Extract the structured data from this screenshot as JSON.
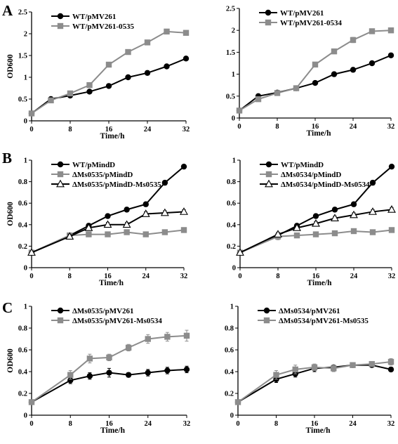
{
  "panel_labels": [
    "A",
    "B",
    "C"
  ],
  "chart_data": [
    {
      "type": "line",
      "panel": "A",
      "xlabel": "Time/h",
      "ylabel": "OD600",
      "xlim": [
        0,
        32
      ],
      "ylim": [
        0,
        2.5
      ],
      "xticks": [
        0,
        8,
        16,
        24,
        32
      ],
      "yticks": [
        0,
        0.5,
        1,
        1.5,
        2,
        2.5
      ],
      "ytick_labels": [
        "0",
        "0.5",
        "1",
        "1.5",
        "2",
        "2.5"
      ],
      "legend": "top-left",
      "series": [
        {
          "name": "WT/pMV261",
          "marker": "circle",
          "color": "#000000",
          "x": [
            0,
            4,
            8,
            12,
            16,
            20,
            24,
            28,
            32
          ],
          "y": [
            0.17,
            0.5,
            0.58,
            0.67,
            0.8,
            1.0,
            1.1,
            1.25,
            1.43
          ],
          "err": [
            0.02,
            0.03,
            0.03,
            0.03,
            0.03,
            0.04,
            0.05,
            0.04,
            0.03
          ]
        },
        {
          "name": "WT/pMV261-0535",
          "marker": "square",
          "color": "#8c8c8c",
          "x": [
            0,
            4,
            8,
            12,
            16,
            20,
            24,
            28,
            32
          ],
          "y": [
            0.17,
            0.47,
            0.63,
            0.82,
            1.29,
            1.58,
            1.8,
            2.05,
            2.02
          ],
          "err": [
            0.02,
            0.03,
            0.03,
            0.04,
            0.04,
            0.05,
            0.04,
            0.04,
            0.03
          ]
        }
      ]
    },
    {
      "type": "line",
      "panel": "A",
      "xlabel": "Time/h",
      "ylabel": "",
      "xlim": [
        0,
        32
      ],
      "ylim": [
        0,
        2.5
      ],
      "xticks": [
        0,
        8,
        16,
        24,
        32
      ],
      "yticks": [
        0,
        0.5,
        1,
        1.5,
        2,
        2.5
      ],
      "ytick_labels": [
        "0",
        "0.5",
        "1",
        "1.5",
        "2",
        "2.5"
      ],
      "legend": "top-left",
      "series": [
        {
          "name": "WT/pMV261",
          "marker": "circle",
          "color": "#000000",
          "x": [
            0,
            4,
            8,
            12,
            16,
            20,
            24,
            28,
            32
          ],
          "y": [
            0.17,
            0.5,
            0.58,
            0.68,
            0.8,
            1.0,
            1.1,
            1.25,
            1.43
          ],
          "err": [
            0.02,
            0.03,
            0.03,
            0.03,
            0.03,
            0.03,
            0.04,
            0.04,
            0.03
          ]
        },
        {
          "name": "WT/pMV261-0534",
          "marker": "square",
          "color": "#8c8c8c",
          "x": [
            0,
            4,
            8,
            12,
            16,
            20,
            24,
            28,
            32
          ],
          "y": [
            0.17,
            0.43,
            0.57,
            0.68,
            1.22,
            1.52,
            1.78,
            1.98,
            2.0
          ],
          "err": [
            0.02,
            0.03,
            0.03,
            0.03,
            0.05,
            0.05,
            0.06,
            0.04,
            0.03
          ]
        }
      ]
    },
    {
      "type": "line",
      "panel": "B",
      "xlabel": "Time/h",
      "ylabel": "OD600",
      "xlim": [
        0,
        32
      ],
      "ylim": [
        0,
        1
      ],
      "xticks": [
        0,
        8,
        16,
        24,
        32
      ],
      "yticks": [
        0,
        0.2,
        0.4,
        0.6,
        0.8,
        1
      ],
      "ytick_labels": [
        "0",
        "0.2",
        "0.4",
        "0.6",
        "0.8",
        "1"
      ],
      "legend": "top-left",
      "series": [
        {
          "name": "WT/pMindD",
          "marker": "circle",
          "color": "#000000",
          "x": [
            0,
            8,
            12,
            16,
            20,
            24,
            28,
            32
          ],
          "y": [
            0.14,
            0.3,
            0.39,
            0.48,
            0.54,
            0.59,
            0.79,
            0.94
          ],
          "err": [
            0.01,
            0.02,
            0.02,
            0.02,
            0.02,
            0.02,
            0.02,
            0.01
          ]
        },
        {
          "name": "ΔMs0535/pMindD",
          "marker": "square",
          "color": "#8c8c8c",
          "x": [
            0,
            8,
            12,
            16,
            20,
            24,
            28,
            32
          ],
          "y": [
            0.14,
            0.3,
            0.31,
            0.31,
            0.33,
            0.31,
            0.33,
            0.35
          ],
          "err": [
            0.01,
            0.02,
            0.02,
            0.02,
            0.02,
            0.01,
            0.02,
            0.02
          ]
        },
        {
          "name": "ΔMs0535/pMindD-Ms0535",
          "marker": "triangle",
          "color": "#000000",
          "x": [
            0,
            8,
            12,
            16,
            20,
            24,
            28,
            32
          ],
          "y": [
            0.14,
            0.29,
            0.37,
            0.4,
            0.4,
            0.5,
            0.51,
            0.52
          ],
          "err": [
            0.01,
            0.02,
            0.02,
            0.02,
            0.02,
            0.02,
            0.02,
            0.02
          ]
        }
      ]
    },
    {
      "type": "line",
      "panel": "B",
      "xlabel": "Time/h",
      "ylabel": "",
      "xlim": [
        0,
        32
      ],
      "ylim": [
        0,
        1
      ],
      "xticks": [
        0,
        8,
        16,
        24,
        32
      ],
      "yticks": [
        0,
        0.2,
        0.4,
        0.6,
        0.8,
        1
      ],
      "ytick_labels": [
        "0",
        "0.2",
        "0.4",
        "0.6",
        "0.8",
        "1"
      ],
      "legend": "top-left",
      "series": [
        {
          "name": "WT/pMindD",
          "marker": "circle",
          "color": "#000000",
          "x": [
            0,
            8,
            12,
            16,
            20,
            24,
            28,
            32
          ],
          "y": [
            0.14,
            0.3,
            0.39,
            0.48,
            0.54,
            0.59,
            0.79,
            0.94
          ],
          "err": [
            0.01,
            0.02,
            0.02,
            0.02,
            0.02,
            0.02,
            0.02,
            0.01
          ]
        },
        {
          "name": "ΔMs0534/pMindD",
          "marker": "square",
          "color": "#8c8c8c",
          "x": [
            0,
            8,
            12,
            16,
            20,
            24,
            28,
            32
          ],
          "y": [
            0.14,
            0.29,
            0.3,
            0.31,
            0.32,
            0.34,
            0.33,
            0.35
          ],
          "err": [
            0.01,
            0.03,
            0.02,
            0.02,
            0.02,
            0.01,
            0.02,
            0.02
          ]
        },
        {
          "name": "ΔMs0534/pMindD-Ms0534",
          "marker": "triangle",
          "color": "#000000",
          "x": [
            0,
            8,
            12,
            16,
            20,
            24,
            28,
            32
          ],
          "y": [
            0.14,
            0.31,
            0.37,
            0.41,
            0.46,
            0.49,
            0.52,
            0.54
          ],
          "err": [
            0.01,
            0.02,
            0.02,
            0.02,
            0.02,
            0.02,
            0.02,
            0.02
          ]
        }
      ]
    },
    {
      "type": "line",
      "panel": "C",
      "xlabel": "Time/h",
      "ylabel": "OD600",
      "xlim": [
        0,
        32
      ],
      "ylim": [
        0,
        1
      ],
      "xticks": [
        0,
        8,
        16,
        24,
        32
      ],
      "yticks": [
        0,
        0.2,
        0.4,
        0.6,
        0.8,
        1
      ],
      "ytick_labels": [
        "0",
        "0.2",
        "0.4",
        "0.6",
        "0.8",
        "1"
      ],
      "legend": "top-left",
      "series": [
        {
          "name": "ΔMs0535/pMV261",
          "marker": "circle",
          "color": "#000000",
          "x": [
            0,
            8,
            12,
            16,
            20,
            24,
            28,
            32
          ],
          "y": [
            0.12,
            0.32,
            0.36,
            0.39,
            0.37,
            0.39,
            0.41,
            0.42
          ],
          "err": [
            0.01,
            0.03,
            0.03,
            0.04,
            0.02,
            0.03,
            0.03,
            0.03
          ]
        },
        {
          "name": "ΔMs0535/pMV261-Ms0534",
          "marker": "square",
          "color": "#8c8c8c",
          "x": [
            0,
            8,
            12,
            16,
            20,
            24,
            28,
            32
          ],
          "y": [
            0.12,
            0.37,
            0.52,
            0.53,
            0.62,
            0.7,
            0.72,
            0.73
          ],
          "err": [
            0.01,
            0.04,
            0.04,
            0.03,
            0.03,
            0.04,
            0.04,
            0.05
          ]
        }
      ]
    },
    {
      "type": "line",
      "panel": "C",
      "xlabel": "Time/h",
      "ylabel": "",
      "xlim": [
        0,
        32
      ],
      "ylim": [
        0,
        1
      ],
      "xticks": [
        0,
        8,
        16,
        24,
        32
      ],
      "yticks": [
        0,
        0.2,
        0.4,
        0.6,
        0.8,
        1
      ],
      "ytick_labels": [
        "0",
        "0.2",
        "0.4",
        "0.6",
        "0.8",
        "1"
      ],
      "legend": "top-left",
      "series": [
        {
          "name": "ΔMs0534/pMV261",
          "marker": "circle",
          "color": "#000000",
          "x": [
            0,
            8,
            12,
            16,
            20,
            24,
            28,
            32
          ],
          "y": [
            0.12,
            0.33,
            0.38,
            0.43,
            0.44,
            0.46,
            0.46,
            0.42
          ],
          "err": [
            0.01,
            0.03,
            0.03,
            0.03,
            0.02,
            0.02,
            0.02,
            0.02
          ]
        },
        {
          "name": "ΔMs0534/pMV261-Ms0535",
          "marker": "square",
          "color": "#8c8c8c",
          "x": [
            0,
            8,
            12,
            16,
            20,
            24,
            28,
            32
          ],
          "y": [
            0.12,
            0.37,
            0.42,
            0.44,
            0.43,
            0.46,
            0.47,
            0.49
          ],
          "err": [
            0.01,
            0.04,
            0.04,
            0.03,
            0.03,
            0.02,
            0.02,
            0.03
          ]
        }
      ]
    }
  ]
}
